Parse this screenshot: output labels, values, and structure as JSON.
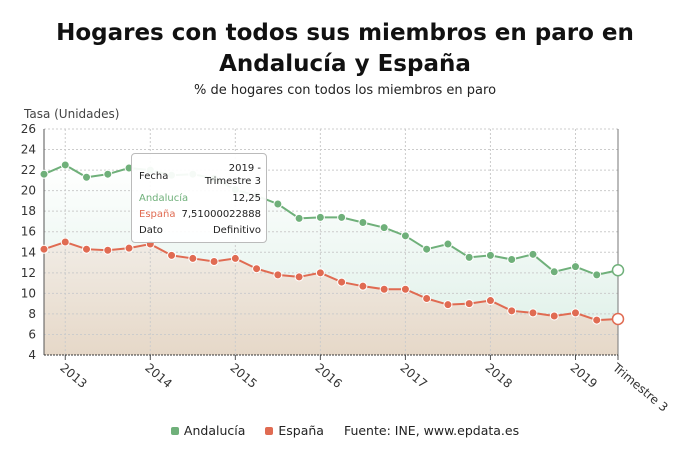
{
  "chart_data": {
    "type": "area",
    "title": "Hogares con todos sus miembros en paro en Andalucía y España",
    "subtitle": "% de hogares con todos los miembros en paro",
    "ylabel": "Tasa (Unidades)",
    "ylim": [
      4,
      26
    ],
    "yticks": [
      4,
      6,
      8,
      10,
      12,
      14,
      16,
      18,
      20,
      22,
      24,
      26
    ],
    "xtick_labels": [
      "2013",
      "2014",
      "2015",
      "2016",
      "2017",
      "2018",
      "2019",
      "Trimestre 3"
    ],
    "x": [
      "2012-T4",
      "2013-T1",
      "2013-T2",
      "2013-T3",
      "2013-T4",
      "2014-T1",
      "2014-T2",
      "2014-T3",
      "2014-T4",
      "2015-T1",
      "2015-T2",
      "2015-T3",
      "2015-T4",
      "2016-T1",
      "2016-T2",
      "2016-T3",
      "2016-T4",
      "2017-T1",
      "2017-T2",
      "2017-T3",
      "2017-T4",
      "2018-T1",
      "2018-T2",
      "2018-T3",
      "2018-T4",
      "2019-T1",
      "2019-T2",
      "2019-T3"
    ],
    "series": [
      {
        "name": "Andalucía",
        "color": "#6fb07a",
        "values": [
          21.6,
          22.5,
          21.3,
          21.6,
          22.2,
          22.0,
          21.5,
          21.6,
          21.2,
          20.1,
          19.5,
          18.7,
          17.3,
          17.4,
          17.4,
          16.9,
          16.4,
          15.6,
          14.3,
          14.8,
          13.5,
          13.7,
          13.3,
          13.8,
          12.1,
          12.6,
          11.8,
          12.25
        ]
      },
      {
        "name": "España",
        "color": "#e06b52",
        "values": [
          14.3,
          15.0,
          14.3,
          14.2,
          14.4,
          14.8,
          13.7,
          13.4,
          13.1,
          13.4,
          12.4,
          11.8,
          11.6,
          12.0,
          11.1,
          10.7,
          10.4,
          10.4,
          9.5,
          8.9,
          9.0,
          9.3,
          8.3,
          8.1,
          7.8,
          8.1,
          7.4,
          7.51
        ]
      }
    ],
    "grid": true,
    "legend": "bottom",
    "source": "Fuente: INE, www.epdata.es",
    "tooltip": {
      "fecha_label": "Fecha",
      "fecha": "2019 - Trimestre 3",
      "andalucia_label": "Andalucía",
      "andalucia": "12,25",
      "espana_label": "España",
      "espana": "7,51000022888",
      "dato_label": "Dato",
      "dato": "Definitivo"
    }
  }
}
